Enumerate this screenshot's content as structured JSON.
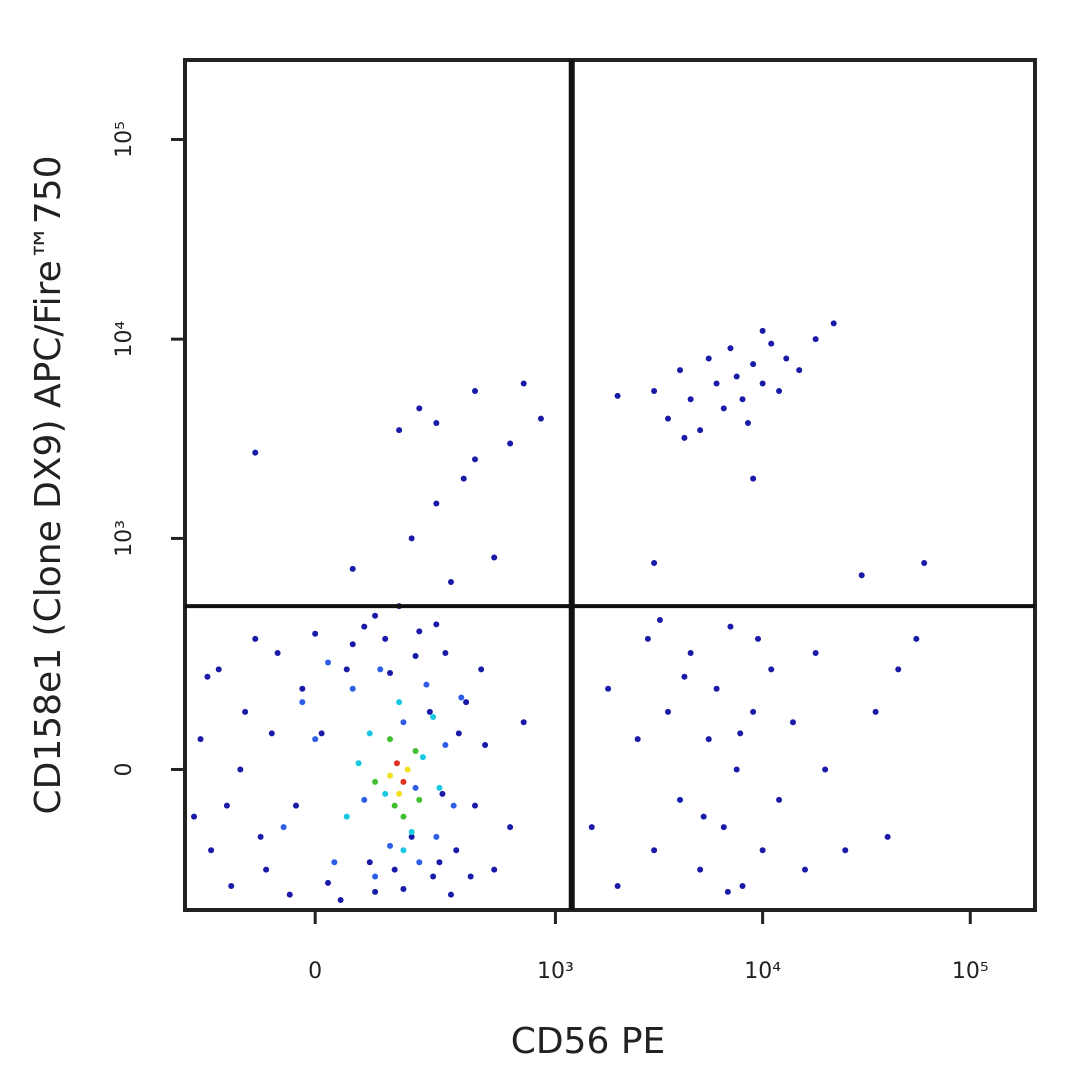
{
  "chart_data": {
    "type": "scatter",
    "x_label": "CD56 PE",
    "y_label": "CD158e1 (Clone DX9) APC/Fire™750",
    "xscale": "biexponential",
    "yscale": "biexponential",
    "xlim": [
      -280,
      205000
    ],
    "ylim": [
      -340,
      250000
    ],
    "xticks": [
      0,
      {
        "value": 1000,
        "label": "10³"
      },
      {
        "value": 10000,
        "label": "10⁴"
      },
      {
        "value": 100000,
        "label": "10⁵"
      }
    ],
    "yticks": [
      0,
      {
        "value": 1000,
        "label": "10³"
      },
      {
        "value": 10000,
        "label": "10⁴"
      },
      {
        "value": 100000,
        "label": "10⁵"
      }
    ],
    "gates": {
      "x": 1200,
      "y": 450
    },
    "series": [
      {
        "color": "#1a1aa8",
        "x": [
          -230,
          -200,
          -180,
          -150,
          -120,
          -100,
          -80,
          -60,
          -40,
          -20,
          0,
          20,
          40,
          60,
          80,
          100,
          120,
          160,
          200,
          240,
          280,
          320,
          360,
          400,
          450,
          500,
          600,
          700,
          300,
          250,
          -250,
          -210,
          -160,
          -90,
          -30,
          10,
          50,
          90,
          130,
          180,
          230,
          270,
          330,
          380,
          430,
          -130,
          -70,
          140,
          190,
          260,
          1500,
          1800,
          2000,
          2500,
          2800,
          3000,
          3500,
          4000,
          4500,
          5000,
          5500,
          6000,
          6500,
          7000,
          7500,
          8000,
          9000,
          10000,
          11000,
          12000,
          14000,
          16000,
          18000,
          20000,
          25000,
          35000,
          45000,
          55000,
          40000,
          3200,
          6800,
          9500,
          4200,
          5200,
          7800,
          3000,
          3500,
          4000,
          4500,
          5000,
          5500,
          6000,
          6500,
          7000,
          7500,
          8000,
          9000,
          10000,
          11000,
          12000,
          13000,
          15000,
          18000,
          22000,
          4200,
          8500,
          10000,
          2000,
          9000,
          -100,
          60,
          150,
          200,
          250,
          300,
          180,
          350,
          400,
          500,
          600,
          700,
          850,
          100,
          250,
          400,
          3000,
          30000,
          60000,
          150
        ],
        "y": [
          50,
          -150,
          200,
          -250,
          100,
          300,
          -200,
          250,
          -280,
          150,
          320,
          -240,
          -300,
          280,
          350,
          -270,
          300,
          -260,
          330,
          -220,
          250,
          -150,
          120,
          -60,
          40,
          -200,
          -100,
          80,
          -280,
          360,
          -80,
          180,
          -60,
          -120,
          -60,
          60,
          200,
          -180,
          190,
          -120,
          100,
          -40,
          60,
          -220,
          200,
          0,
          60,
          -200,
          240,
          -180,
          -100,
          150,
          -250,
          50,
          300,
          -150,
          100,
          -50,
          250,
          -200,
          50,
          150,
          -100,
          350,
          0,
          -250,
          100,
          -150,
          200,
          -50,
          80,
          -200,
          250,
          0,
          -150,
          100,
          200,
          300,
          -120,
          380,
          -270,
          300,
          180,
          -80,
          60,
          5500,
          4000,
          7000,
          5000,
          3500,
          8000,
          6000,
          4500,
          9000,
          6500,
          5000,
          7500,
          6000,
          9500,
          5500,
          8000,
          7000,
          10000,
          12000,
          3200,
          3800,
          11000,
          5200,
          2000,
          2700,
          700,
          3500,
          4500,
          1500,
          600,
          1000,
          2000,
          5500,
          800,
          3000,
          6000,
          4000,
          400,
          3800,
          2500,
          750,
          650,
          750,
          450
        ]
      },
      {
        "color": "#2e5ee8",
        "x": [
          -50,
          0,
          30,
          60,
          80,
          110,
          130,
          160,
          190,
          220,
          250,
          280,
          310,
          340,
          20,
          100,
          200,
          -20
        ],
        "y": [
          -100,
          50,
          -180,
          150,
          -50,
          200,
          -140,
          80,
          -30,
          160,
          -120,
          40,
          -60,
          130,
          220,
          -220,
          -180,
          120
        ]
      },
      {
        "color": "#18c8e0",
        "x": [
          50,
          90,
          120,
          150,
          180,
          210,
          240,
          70,
          160,
          260
        ],
        "y": [
          -80,
          60,
          -40,
          120,
          -110,
          20,
          90,
          10,
          -150,
          -30
        ]
      },
      {
        "color": "#40c030",
        "x": [
          100,
          130,
          160,
          190,
          140,
          200
        ],
        "y": [
          -20,
          50,
          -80,
          30,
          -60,
          -50
        ]
      },
      {
        "color": "#f0e020",
        "x": [
          130,
          170,
          150
        ],
        "y": [
          -10,
          0,
          -40
        ]
      },
      {
        "color": "#e03020",
        "x": [
          160,
          145
        ],
        "y": [
          -20,
          10
        ]
      }
    ]
  }
}
